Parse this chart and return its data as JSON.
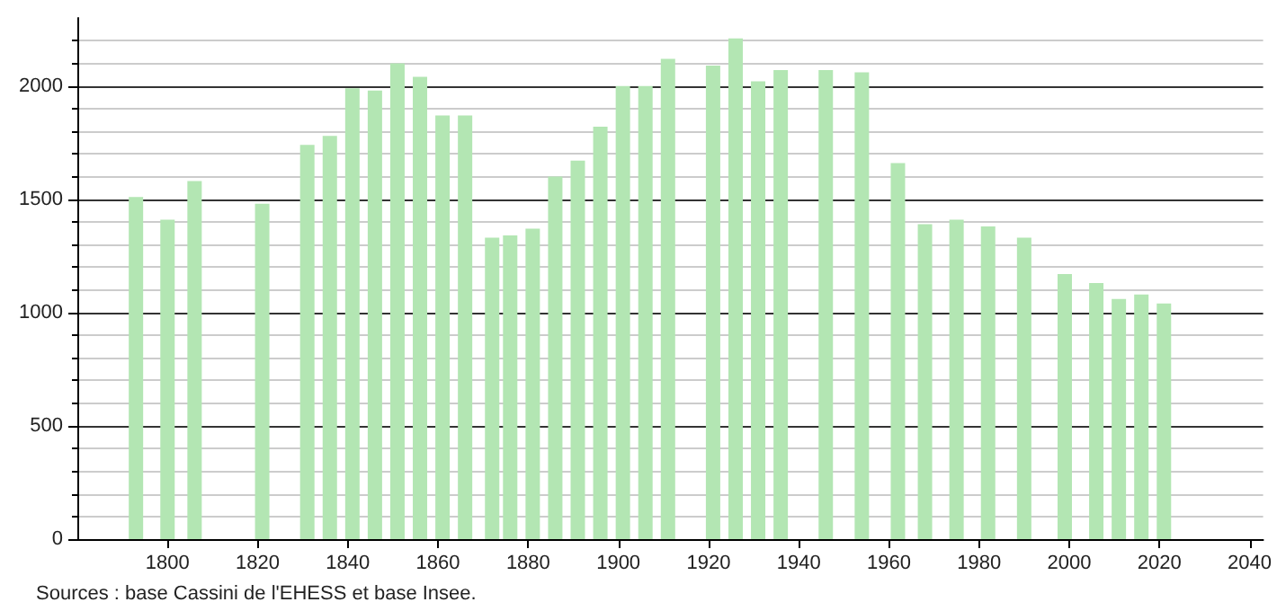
{
  "chart_data": {
    "type": "bar",
    "x": [
      1793,
      1800,
      1806,
      1821,
      1831,
      1836,
      1841,
      1846,
      1851,
      1856,
      1861,
      1866,
      1872,
      1876,
      1881,
      1886,
      1891,
      1896,
      1901,
      1906,
      1911,
      1921,
      1926,
      1931,
      1936,
      1946,
      1954,
      1962,
      1968,
      1975,
      1982,
      1990,
      1999,
      2006,
      2011,
      2016,
      2021
    ],
    "values": [
      1510,
      1410,
      1580,
      1480,
      1740,
      1780,
      1990,
      1980,
      2100,
      2040,
      1870,
      1870,
      1330,
      1340,
      1370,
      1600,
      1670,
      1820,
      2000,
      2000,
      2120,
      2090,
      2210,
      2020,
      2070,
      2070,
      2060,
      1660,
      1390,
      1410,
      1380,
      1330,
      1170,
      1130,
      1060,
      1080,
      1040
    ],
    "color": "#b3e6b3",
    "xlim": [
      1780,
      2043
    ],
    "xticks": [
      1800,
      1820,
      1840,
      1860,
      1880,
      1900,
      1920,
      1940,
      1960,
      1980,
      2000,
      2020,
      2040
    ],
    "ylim": [
      0,
      2300
    ],
    "yticks": [
      0,
      500,
      1000,
      1500,
      2000
    ],
    "grid": "y",
    "annotations": [
      "Sources : base Cassini de l'EHESS et base Insee."
    ]
  }
}
